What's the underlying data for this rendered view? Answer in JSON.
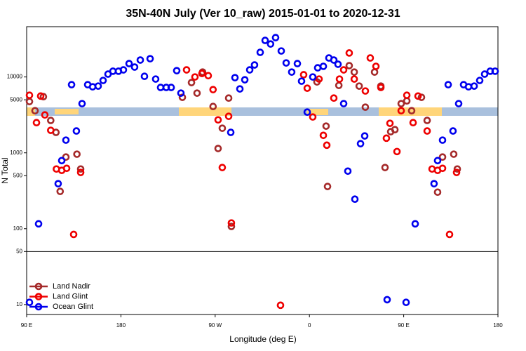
{
  "chart_data": {
    "type": "scatter",
    "title": "35N-40N July (Ver 10_raw)   2015-01-01 to 2020-12-31",
    "x_label": "Longitude (deg E)",
    "y_label": "N Total",
    "log_y": true,
    "legend": "bottom-left",
    "xlim": [
      90,
      540
    ],
    "xticks": [
      {
        "value": 90,
        "label": "90 E"
      },
      {
        "value": 180,
        "label": "180"
      },
      {
        "value": 270,
        "label": "90 W"
      },
      {
        "value": 360,
        "label": "0"
      },
      {
        "value": 450,
        "label": "90 E"
      },
      {
        "value": 540,
        "label": "180"
      }
    ],
    "ylim": [
      7.4,
      46000
    ],
    "yticks": [
      10,
      50,
      100,
      500,
      1000,
      5000,
      10000
    ],
    "series": [
      {
        "name": "Land Nadir",
        "color": "#a52a2a",
        "x": [
          92.7,
          98,
          106,
          113,
          118,
          127.5,
          122,
          138,
          141.6,
          238.7,
          247.4,
          252.7,
          258,
          268,
          272.8,
          276.8,
          282.9,
          285.5,
          367.2,
          375.9,
          377.3,
          388.1,
          398,
          402.8,
          407.5,
          413.4,
          422.2,
          428.2,
          432.2,
          437.6,
          441.6,
          447.6,
          453,
          457.6,
          467,
          472.4,
          482.4,
          487.1,
          497.8,
          501.2
        ],
        "values": [
          4740,
          3590,
          5500,
          2670,
          1860,
          880,
          310,
          960,
          612,
          5390,
          8430,
          6120,
          11600,
          4080,
          1140,
          2110,
          5270,
          107,
          8610,
          2250,
          360,
          7740,
          14100,
          11600,
          7580,
          4000,
          11600,
          7580,
          640,
          1900,
          2020,
          4450,
          4840,
          3590,
          5390,
          2670,
          303,
          880,
          960,
          612
        ]
      },
      {
        "name": "Land Glint",
        "color": "#ee0000",
        "x": [
          92.7,
          103.4,
          107.4,
          99.4,
          113,
          118.4,
          123.5,
          128.2,
          134.9,
          141.6,
          242.7,
          250.7,
          257.4,
          263.4,
          268,
          272.8,
          276.8,
          282.9,
          285.5,
          332.4,
          354.5,
          357.9,
          363.2,
          369.2,
          373.3,
          376.6,
          383.3,
          388.7,
          392.7,
          398,
          402.8,
          413.4,
          418.1,
          423.5,
          428.2,
          433.5,
          443.6,
          436.9,
          447.6,
          453,
          459,
          463.7,
          472.4,
          477.1,
          482.4,
          487.1,
          493.8,
          500.5
        ],
        "values": [
          5740,
          5600,
          3160,
          2500,
          1980,
          612,
          587,
          625,
          84,
          551,
          12400,
          10000,
          11100,
          10400,
          6810,
          2720,
          640,
          3030,
          119,
          9.8,
          10700,
          7110,
          2970,
          9380,
          1700,
          1260,
          5270,
          9380,
          12400,
          20700,
          9380,
          6530,
          17800,
          13800,
          7270,
          1560,
          1040,
          2450,
          3590,
          5740,
          2500,
          5600,
          1940,
          612,
          587,
          625,
          84,
          551
        ]
      },
      {
        "name": "Ocean Glint",
        "color": "#0000ee",
        "x": [
          92.7,
          101.4,
          120.1,
          123.5,
          127.5,
          132.9,
          137.5,
          142.9,
          148.3,
          153,
          158.3,
          163,
          167.7,
          172.4,
          177.7,
          182.4,
          187.8,
          193.1,
          198.5,
          202.5,
          207.9,
          213.2,
          217.9,
          223.3,
          228,
          233.3,
          237.3,
          284.9,
          288.9,
          293.6,
          298.3,
          303,
          307.6,
          313,
          317.7,
          322.9,
          327.7,
          333.1,
          337.8,
          343.1,
          348.5,
          352.5,
          357.9,
          363.2,
          367.9,
          373.3,
          378.6,
          383.3,
          387.3,
          392.7,
          396.7,
          403.4,
          408.8,
          412.8,
          434.2,
          452.3,
          461,
          479,
          482.4,
          487.1,
          492.5,
          497.1,
          502.5,
          507.2,
          511.9,
          517.3,
          522.6,
          527.3,
          532.6,
          537.3
        ],
        "values": [
          10.7,
          116,
          392,
          790,
          1470,
          7910,
          1940,
          4450,
          7910,
          7420,
          7580,
          8990,
          10900,
          11900,
          11900,
          12400,
          15000,
          13500,
          16700,
          10200,
          17400,
          9380,
          7270,
          7270,
          7270,
          12100,
          6120,
          1860,
          9790,
          6960,
          9180,
          12400,
          14400,
          21100,
          30300,
          27200,
          33000,
          22000,
          15300,
          11600,
          15000,
          8800,
          3440,
          10000,
          13200,
          13800,
          17800,
          16700,
          14700,
          4450,
          574,
          245,
          1320,
          1670,
          11.6,
          10.7,
          116,
          392,
          790,
          1470,
          7910,
          1940,
          4450,
          7910,
          7420,
          7580,
          8990,
          10900,
          11900,
          11900
        ]
      }
    ]
  }
}
